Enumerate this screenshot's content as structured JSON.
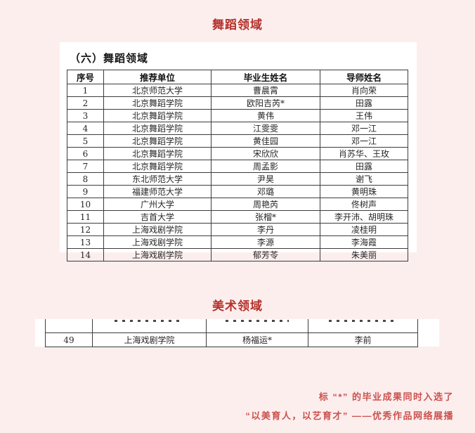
{
  "colors": {
    "background": "#fdeeee",
    "panel": "#ffffff",
    "title_red": "#b5312b",
    "footnote_red": "#ca524e"
  },
  "dance_section": {
    "title": "舞蹈领域",
    "heading": "（六）舞蹈领域",
    "table": {
      "headers": [
        "序号",
        "推荐单位",
        "毕业生姓名",
        "导师姓名"
      ],
      "rows": [
        [
          "1",
          "北京师范大学",
          "曹晨霄",
          "肖向荣"
        ],
        [
          "2",
          "北京舞蹈学院",
          "欧阳吉芮*",
          "田露"
        ],
        [
          "3",
          "北京舞蹈学院",
          "黄伟",
          "王伟"
        ],
        [
          "4",
          "北京舞蹈学院",
          "江雯雯",
          "邓一江"
        ],
        [
          "5",
          "北京舞蹈学院",
          "黄佳园",
          "邓一江"
        ],
        [
          "6",
          "北京舞蹈学院",
          "宋欣欣",
          "肖苏华、王玫"
        ],
        [
          "7",
          "北京舞蹈学院",
          "周孟影",
          "田露"
        ],
        [
          "8",
          "东北师范大学",
          "尹昊",
          "谢飞"
        ],
        [
          "9",
          "福建师范大学",
          "邓璐",
          "黄明珠"
        ],
        [
          "10",
          "广州大学",
          "周艳芮",
          "佟树声"
        ],
        [
          "11",
          "吉首大学",
          "张榴*",
          "李开沛、胡明珠"
        ],
        [
          "12",
          "上海戏剧学院",
          "李丹",
          "凌桂明"
        ],
        [
          "13",
          "上海戏剧学院",
          "李源",
          "李海霞"
        ],
        [
          "14",
          "上海戏剧学院",
          "郁芳苓",
          "朱美丽"
        ]
      ]
    }
  },
  "art_section": {
    "title": "美术领域",
    "table": {
      "has_cut_row": true,
      "rows": [
        [
          "49",
          "上海戏剧学院",
          "杨福运*",
          "李前"
        ]
      ]
    }
  },
  "footnotes": {
    "line1": "标 “*” 的毕业成果同时入选了",
    "line2": "“以美育人，以艺育才” ——优秀作品网络展播"
  }
}
